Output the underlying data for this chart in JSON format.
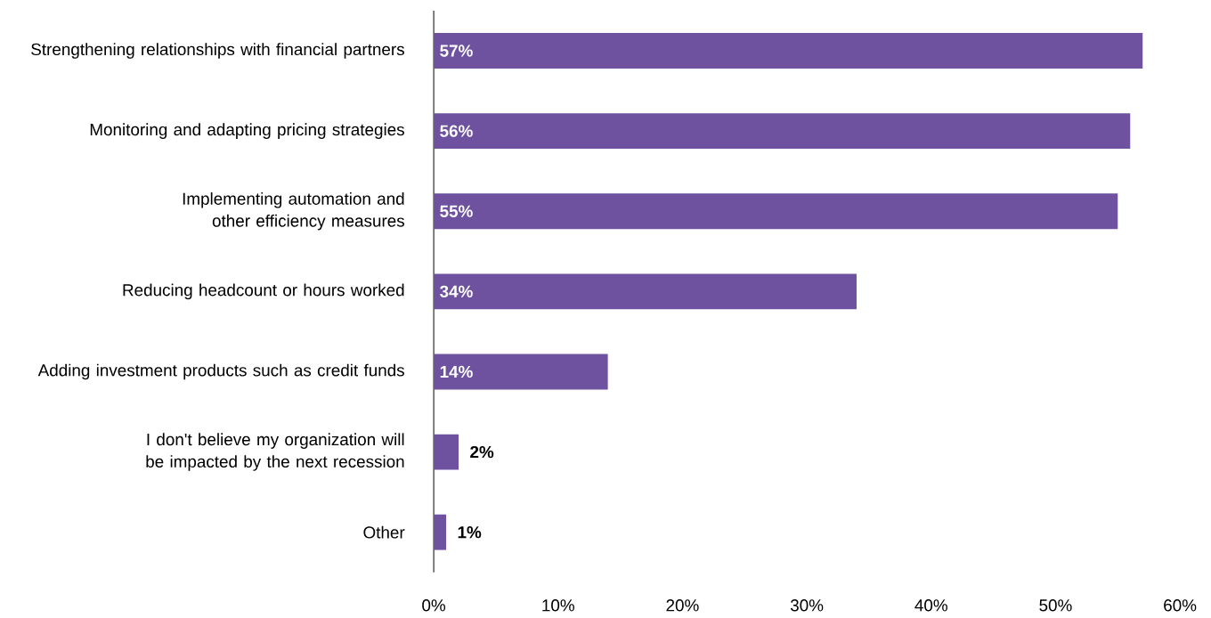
{
  "chart_data": {
    "type": "bar",
    "orientation": "horizontal",
    "categories": [
      "Strengthening relationships with financial partners",
      "Monitoring and adapting pricing strategies",
      "Implementing automation and other efficiency measures",
      "Reducing headcount or hours worked",
      "Adding investment products such as credit funds",
      "I don't believe my organization will be impacted by the next recession",
      "Other"
    ],
    "values": [
      57,
      56,
      55,
      34,
      14,
      2,
      1
    ],
    "value_labels": [
      "57%",
      "56%",
      "55%",
      "34%",
      "14%",
      "2%",
      "1%"
    ],
    "color": "#6e529f",
    "xlim": [
      0,
      60
    ],
    "xticks": [
      {
        "value": 0,
        "label": "0%"
      },
      {
        "value": 10,
        "label": "10%"
      },
      {
        "value": 20,
        "label": "20%"
      },
      {
        "value": 30,
        "label": "30%"
      },
      {
        "value": 40,
        "label": "40%"
      },
      {
        "value": 50,
        "label": "50%"
      },
      {
        "value": 60,
        "label": "60%"
      }
    ]
  }
}
